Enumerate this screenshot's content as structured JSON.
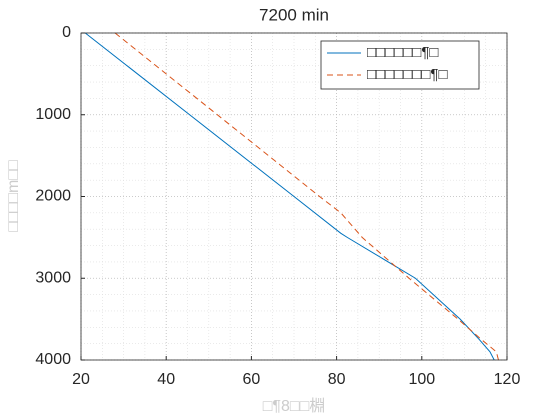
{
  "chart_data": {
    "type": "line",
    "title": "7200 min",
    "x_label": "□¶8□□棩",
    "y_label": "□□□□m□□",
    "xlim": [
      20,
      120
    ],
    "xticks": [
      20,
      40,
      60,
      80,
      100,
      120
    ],
    "ylim": [
      0,
      4000
    ],
    "yticks": [
      0,
      1000,
      2000,
      3000,
      4000
    ],
    "y_reversed": true,
    "grid": true,
    "minor_grid": true,
    "legend_position": "upper right",
    "series": [
      {
        "name": "□□□□□□¶□",
        "color": "#0072bd",
        "dash": "solid",
        "x": [
          21,
          45.5,
          70,
          81,
          82.5,
          98.5,
          109,
          113.5,
          116,
          117
        ],
        "values": [
          0,
          1000,
          2000,
          2450,
          2500,
          3000,
          3500,
          3750,
          3900,
          4000
        ]
      },
      {
        "name": "□□□□□□□¶□",
        "color": "#d95319",
        "dash": "dashed",
        "x": [
          28,
          52,
          76,
          81,
          86,
          97,
          108.5,
          114,
          117.5,
          118
        ],
        "values": [
          0,
          1000,
          2000,
          2200,
          2500,
          3000,
          3500,
          3750,
          3900,
          4000
        ]
      }
    ]
  }
}
